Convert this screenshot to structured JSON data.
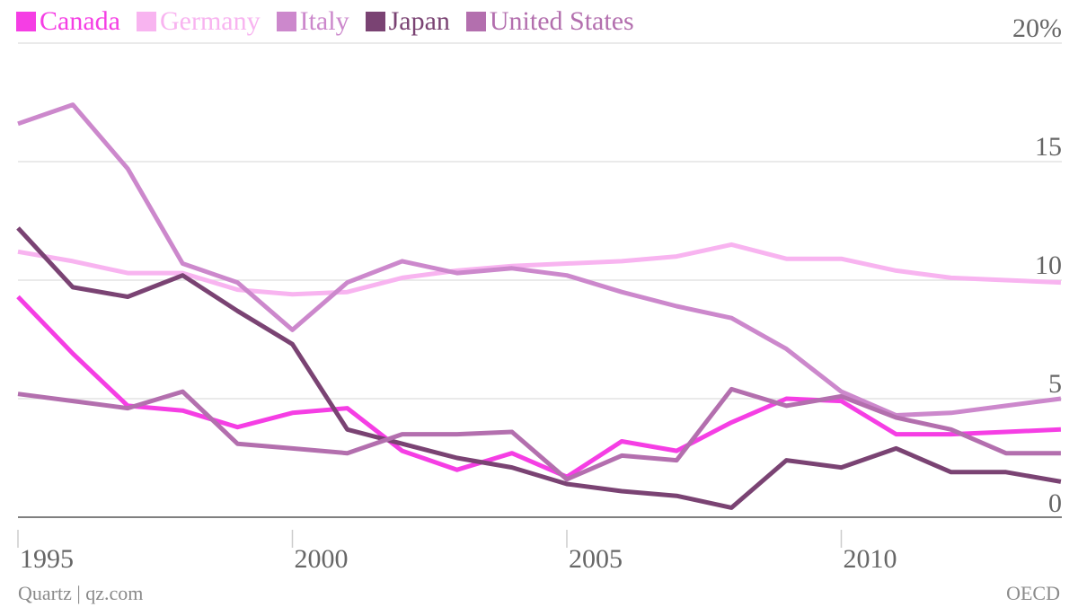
{
  "chart_data": {
    "type": "line",
    "x": [
      1995,
      1996,
      1997,
      1998,
      1999,
      2000,
      2001,
      2002,
      2003,
      2004,
      2005,
      2006,
      2007,
      2008,
      2009,
      2010,
      2011,
      2012,
      2013,
      2014
    ],
    "series": [
      {
        "name": "Canada",
        "color": "#f53ee4",
        "values": [
          9.3,
          6.9,
          4.7,
          4.5,
          3.8,
          4.4,
          4.6,
          2.8,
          2.0,
          2.7,
          1.7,
          3.2,
          2.8,
          4.0,
          5.0,
          4.9,
          3.5,
          3.5,
          3.6,
          3.7
        ]
      },
      {
        "name": "Germany",
        "color": "#f8b4f0",
        "values": [
          11.2,
          10.8,
          10.3,
          10.3,
          9.6,
          9.4,
          9.5,
          10.1,
          10.4,
          10.6,
          10.7,
          10.8,
          11.0,
          11.5,
          10.9,
          10.9,
          10.4,
          10.1,
          10.0,
          9.9
        ]
      },
      {
        "name": "Italy",
        "color": "#cc88cc",
        "values": [
          16.6,
          17.4,
          14.7,
          10.7,
          9.9,
          7.9,
          9.9,
          10.8,
          10.3,
          10.5,
          10.2,
          9.5,
          8.9,
          8.4,
          7.1,
          5.3,
          4.3,
          4.4,
          4.7,
          5.0
        ]
      },
      {
        "name": "Japan",
        "color": "#7a4373",
        "values": [
          12.2,
          9.7,
          9.3,
          10.2,
          8.7,
          7.3,
          3.7,
          3.1,
          2.5,
          2.1,
          1.4,
          1.1,
          0.9,
          0.4,
          2.4,
          2.1,
          2.9,
          1.9,
          1.9,
          1.5
        ]
      },
      {
        "name": "United States",
        "color": "#b36fae",
        "values": [
          5.2,
          4.9,
          4.6,
          5.3,
          3.1,
          2.9,
          2.7,
          3.5,
          3.5,
          3.6,
          1.6,
          2.6,
          2.4,
          5.4,
          4.7,
          5.1,
          4.2,
          3.7,
          2.7,
          2.7
        ]
      }
    ],
    "yticks": [
      0,
      5,
      10,
      15,
      20
    ],
    "ytick_labels": [
      "0",
      "5",
      "10",
      "15",
      "20%"
    ],
    "xticks": [
      1995,
      2000,
      2005,
      2010
    ],
    "xtick_labels": [
      "1995",
      "2000",
      "2005",
      "2010"
    ],
    "ylim": [
      0,
      20
    ],
    "xlim": [
      1995,
      2014
    ],
    "grid": true,
    "legend_position": "top-left",
    "source": "OECD"
  },
  "footer": {
    "credit": "Quartz | qz.com",
    "source": "OECD"
  }
}
